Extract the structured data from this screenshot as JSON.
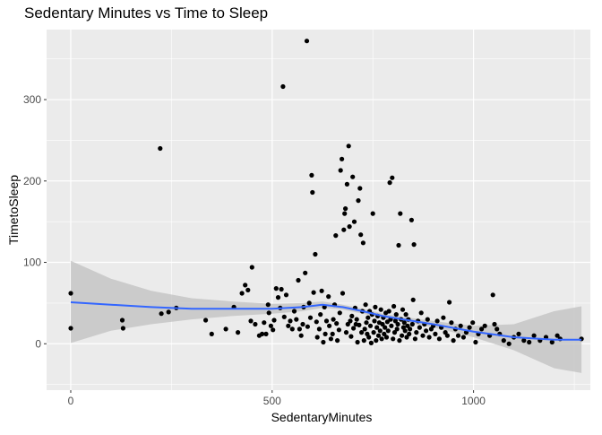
{
  "chart_data": {
    "type": "scatter",
    "title": "Sedentary Minutes vs Time to Sleep",
    "xlabel": "SedentaryMinutes",
    "ylabel": "TimetoSleep",
    "xlim": [
      -60,
      1290
    ],
    "ylim": [
      -57,
      386
    ],
    "x_ticks": [
      0,
      500,
      1000
    ],
    "y_ticks": [
      0,
      100,
      200,
      300
    ],
    "grid": true,
    "legend": "none",
    "colors": {
      "panel": "#EBEBEB",
      "grid": "#FFFFFF",
      "point": "#000000",
      "smooth_line": "#3366FF",
      "ribbon": "#C0C0C0",
      "axis_text": "#4D4D4D"
    },
    "points": [
      [
        0,
        62
      ],
      [
        0,
        19
      ],
      [
        128,
        29
      ],
      [
        130,
        19
      ],
      [
        222,
        240
      ],
      [
        225,
        37
      ],
      [
        243,
        39
      ],
      [
        262,
        44
      ],
      [
        335,
        29
      ],
      [
        350,
        12
      ],
      [
        385,
        18
      ],
      [
        405,
        45
      ],
      [
        415,
        14
      ],
      [
        425,
        62
      ],
      [
        433,
        72
      ],
      [
        440,
        66
      ],
      [
        447,
        28
      ],
      [
        450,
        94
      ],
      [
        458,
        24
      ],
      [
        468,
        10
      ],
      [
        475,
        12
      ],
      [
        480,
        26
      ],
      [
        485,
        12
      ],
      [
        490,
        48
      ],
      [
        492,
        38
      ],
      [
        497,
        22
      ],
      [
        502,
        17
      ],
      [
        505,
        29
      ],
      [
        510,
        68
      ],
      [
        515,
        57
      ],
      [
        520,
        44
      ],
      [
        523,
        67
      ],
      [
        527,
        316
      ],
      [
        530,
        33
      ],
      [
        535,
        60
      ],
      [
        540,
        22
      ],
      [
        545,
        28
      ],
      [
        550,
        18
      ],
      [
        555,
        40
      ],
      [
        560,
        30
      ],
      [
        565,
        78
      ],
      [
        568,
        18
      ],
      [
        572,
        10
      ],
      [
        576,
        24
      ],
      [
        578,
        45
      ],
      [
        582,
        87
      ],
      [
        586,
        372
      ],
      [
        588,
        21
      ],
      [
        592,
        50
      ],
      [
        595,
        32
      ],
      [
        598,
        207
      ],
      [
        600,
        186
      ],
      [
        603,
        63
      ],
      [
        607,
        110
      ],
      [
        610,
        27
      ],
      [
        612,
        8
      ],
      [
        617,
        18
      ],
      [
        620,
        36
      ],
      [
        623,
        65
      ],
      [
        627,
        2
      ],
      [
        630,
        45
      ],
      [
        632,
        12
      ],
      [
        635,
        28
      ],
      [
        640,
        58
      ],
      [
        642,
        22
      ],
      [
        646,
        6
      ],
      [
        650,
        12
      ],
      [
        652,
        30
      ],
      [
        655,
        48
      ],
      [
        658,
        133
      ],
      [
        660,
        25
      ],
      [
        662,
        4
      ],
      [
        666,
        17
      ],
      [
        668,
        38
      ],
      [
        670,
        213
      ],
      [
        673,
        227
      ],
      [
        675,
        62
      ],
      [
        678,
        140
      ],
      [
        680,
        160
      ],
      [
        682,
        166
      ],
      [
        684,
        14
      ],
      [
        686,
        196
      ],
      [
        688,
        24
      ],
      [
        690,
        243
      ],
      [
        692,
        144
      ],
      [
        694,
        28
      ],
      [
        696,
        9
      ],
      [
        698,
        34
      ],
      [
        700,
        205
      ],
      [
        702,
        19
      ],
      [
        704,
        150
      ],
      [
        706,
        44
      ],
      [
        708,
        24
      ],
      [
        710,
        30
      ],
      [
        712,
        2
      ],
      [
        714,
        176
      ],
      [
        716,
        23
      ],
      [
        718,
        191
      ],
      [
        720,
        134
      ],
      [
        722,
        14
      ],
      [
        724,
        40
      ],
      [
        726,
        124
      ],
      [
        728,
        4
      ],
      [
        730,
        18
      ],
      [
        732,
        48
      ],
      [
        734,
        26
      ],
      [
        736,
        12
      ],
      [
        738,
        32
      ],
      [
        740,
        8
      ],
      [
        742,
        40
      ],
      [
        744,
        22
      ],
      [
        746,
        1
      ],
      [
        748,
        36
      ],
      [
        750,
        160
      ],
      [
        752,
        14
      ],
      [
        754,
        28
      ],
      [
        756,
        45
      ],
      [
        758,
        4
      ],
      [
        760,
        20
      ],
      [
        762,
        34
      ],
      [
        764,
        10
      ],
      [
        766,
        26
      ],
      [
        768,
        16
      ],
      [
        770,
        42
      ],
      [
        772,
        6
      ],
      [
        774,
        24
      ],
      [
        776,
        32
      ],
      [
        778,
        12
      ],
      [
        780,
        20
      ],
      [
        782,
        38
      ],
      [
        784,
        8
      ],
      [
        786,
        27
      ],
      [
        788,
        16
      ],
      [
        790,
        40
      ],
      [
        792,
        198
      ],
      [
        794,
        30
      ],
      [
        796,
        22
      ],
      [
        798,
        204
      ],
      [
        800,
        6
      ],
      [
        802,
        46
      ],
      [
        804,
        14
      ],
      [
        806,
        28
      ],
      [
        808,
        36
      ],
      [
        810,
        18
      ],
      [
        812,
        24
      ],
      [
        814,
        121
      ],
      [
        816,
        4
      ],
      [
        818,
        160
      ],
      [
        820,
        30
      ],
      [
        822,
        10
      ],
      [
        824,
        42
      ],
      [
        826,
        20
      ],
      [
        828,
        26
      ],
      [
        830,
        16
      ],
      [
        832,
        36
      ],
      [
        834,
        8
      ],
      [
        836,
        22
      ],
      [
        838,
        30
      ],
      [
        840,
        12
      ],
      [
        842,
        18
      ],
      [
        846,
        152
      ],
      [
        848,
        24
      ],
      [
        850,
        54
      ],
      [
        852,
        122
      ],
      [
        855,
        6
      ],
      [
        858,
        14
      ],
      [
        862,
        28
      ],
      [
        866,
        20
      ],
      [
        870,
        38
      ],
      [
        874,
        10
      ],
      [
        878,
        24
      ],
      [
        882,
        16
      ],
      [
        886,
        30
      ],
      [
        890,
        8
      ],
      [
        895,
        18
      ],
      [
        900,
        22
      ],
      [
        905,
        12
      ],
      [
        910,
        28
      ],
      [
        915,
        6
      ],
      [
        920,
        20
      ],
      [
        925,
        32
      ],
      [
        930,
        14
      ],
      [
        935,
        10
      ],
      [
        940,
        51
      ],
      [
        945,
        26
      ],
      [
        950,
        4
      ],
      [
        955,
        18
      ],
      [
        962,
        10
      ],
      [
        968,
        22
      ],
      [
        975,
        8
      ],
      [
        982,
        14
      ],
      [
        990,
        20
      ],
      [
        998,
        26
      ],
      [
        1005,
        2
      ],
      [
        1012,
        12
      ],
      [
        1020,
        18
      ],
      [
        1028,
        22
      ],
      [
        1040,
        10
      ],
      [
        1048,
        60
      ],
      [
        1052,
        24
      ],
      [
        1058,
        18
      ],
      [
        1065,
        12
      ],
      [
        1075,
        4
      ],
      [
        1088,
        0
      ],
      [
        1100,
        8
      ],
      [
        1112,
        12
      ],
      [
        1125,
        4
      ],
      [
        1138,
        2
      ],
      [
        1150,
        10
      ],
      [
        1165,
        4
      ],
      [
        1180,
        8
      ],
      [
        1195,
        2
      ],
      [
        1208,
        10
      ],
      [
        1215,
        6
      ],
      [
        1268,
        6
      ]
    ],
    "smooth": [
      [
        0,
        51
      ],
      [
        100,
        48
      ],
      [
        200,
        45
      ],
      [
        300,
        43
      ],
      [
        400,
        43
      ],
      [
        500,
        43
      ],
      [
        575,
        45
      ],
      [
        625,
        48
      ],
      [
        675,
        45
      ],
      [
        725,
        40
      ],
      [
        775,
        34
      ],
      [
        825,
        30
      ],
      [
        900,
        24
      ],
      [
        1000,
        15
      ],
      [
        1100,
        8
      ],
      [
        1200,
        5
      ],
      [
        1268,
        5
      ]
    ],
    "smooth_lower": [
      [
        0,
        1
      ],
      [
        100,
        16
      ],
      [
        200,
        24
      ],
      [
        300,
        30
      ],
      [
        400,
        34
      ],
      [
        500,
        37
      ],
      [
        575,
        40
      ],
      [
        625,
        44
      ],
      [
        675,
        42
      ],
      [
        725,
        37
      ],
      [
        775,
        31
      ],
      [
        825,
        27
      ],
      [
        900,
        20
      ],
      [
        1000,
        8
      ],
      [
        1100,
        -8
      ],
      [
        1200,
        -30
      ],
      [
        1268,
        -36
      ]
    ],
    "smooth_upper": [
      [
        0,
        102
      ],
      [
        100,
        80
      ],
      [
        200,
        65
      ],
      [
        300,
        56
      ],
      [
        400,
        52
      ],
      [
        500,
        49
      ],
      [
        575,
        50
      ],
      [
        625,
        52
      ],
      [
        675,
        48
      ],
      [
        725,
        43
      ],
      [
        775,
        37
      ],
      [
        825,
        33
      ],
      [
        900,
        28
      ],
      [
        1000,
        22
      ],
      [
        1100,
        24
      ],
      [
        1200,
        40
      ],
      [
        1268,
        46
      ]
    ]
  }
}
